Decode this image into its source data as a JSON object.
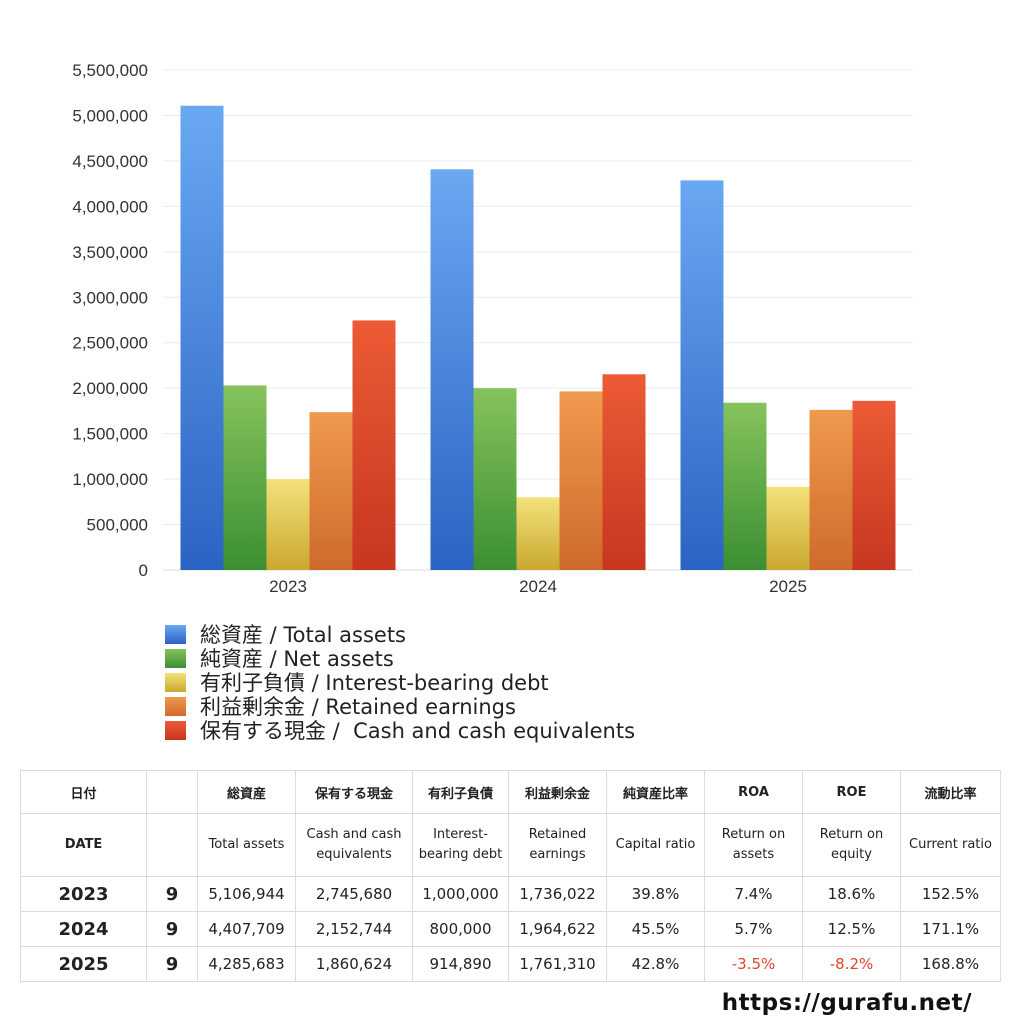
{
  "chart_data": {
    "type": "bar",
    "categories": [
      "2023",
      "2024",
      "2025"
    ],
    "ylim": [
      0,
      5500000
    ],
    "yticks": [
      "0",
      "500,000",
      "1,000,000",
      "1,500,000",
      "2,000,000",
      "2,500,000",
      "3,000,000",
      "3,500,000",
      "4,000,000",
      "4,500,000",
      "5,000,000",
      "5,500,000"
    ],
    "grid": true,
    "legend_position": "bottom",
    "series": [
      {
        "name": "総資産 / Total assets",
        "values": [
          5106944,
          4407709,
          4285683
        ],
        "color_top": "#6aa8f2",
        "color_bottom": "#2b63c4"
      },
      {
        "name": "純資産 / Net assets",
        "values": [
          2030000,
          2000000,
          1840000
        ],
        "color_top": "#86c35c",
        "color_bottom": "#3b8f32"
      },
      {
        "name": "有利子負債 / Interest-bearing debt",
        "values": [
          1000000,
          800000,
          914890
        ],
        "color_top": "#f4e27a",
        "color_bottom": "#c9a82f"
      },
      {
        "name": "利益剰余金 / Retained earnings",
        "values": [
          1736022,
          1964622,
          1761310
        ],
        "color_top": "#ef9a4e",
        "color_bottom": "#cf6a2c"
      },
      {
        "name": "保有する現金 /  Cash and cash equivalents",
        "values": [
          2745680,
          2152744,
          1860624
        ],
        "color_top": "#ec5b35",
        "color_bottom": "#c73620"
      }
    ]
  },
  "table": {
    "header_jp": [
      "日付",
      "",
      "総資産",
      "保有する現金",
      "有利子負債",
      "利益剰余金",
      "純資産比率",
      "ROA",
      "ROE",
      "流動比率"
    ],
    "header_en": [
      "DATE",
      "",
      "Total assets",
      "Cash and cash equivalents",
      "Interest-bearing debt",
      "Retained earnings",
      "Capital ratio",
      "Return on assets",
      "Return on equity",
      "Current ratio"
    ],
    "rows": [
      {
        "year": "2023",
        "month": "9",
        "total_assets": "5,106,944",
        "cash": "2,745,680",
        "debt": "1,000,000",
        "retained": "1,736,022",
        "capital_ratio": "39.8%",
        "roa": "7.4%",
        "roe": "18.6%",
        "current_ratio": "152.5%",
        "roa_negative": false,
        "roe_negative": false
      },
      {
        "year": "2024",
        "month": "9",
        "total_assets": "4,407,709",
        "cash": "2,152,744",
        "debt": "800,000",
        "retained": "1,964,622",
        "capital_ratio": "45.5%",
        "roa": "5.7%",
        "roe": "12.5%",
        "current_ratio": "171.1%",
        "roa_negative": false,
        "roe_negative": false
      },
      {
        "year": "2025",
        "month": "9",
        "total_assets": "4,285,683",
        "cash": "1,860,624",
        "debt": "914,890",
        "retained": "1,761,310",
        "capital_ratio": "42.8%",
        "roa": "-3.5%",
        "roe": "-8.2%",
        "current_ratio": "168.8%",
        "roa_negative": true,
        "roe_negative": true
      }
    ],
    "negative_color": "#e0452a"
  },
  "footer": {
    "url": "https://gurafu.net/"
  }
}
